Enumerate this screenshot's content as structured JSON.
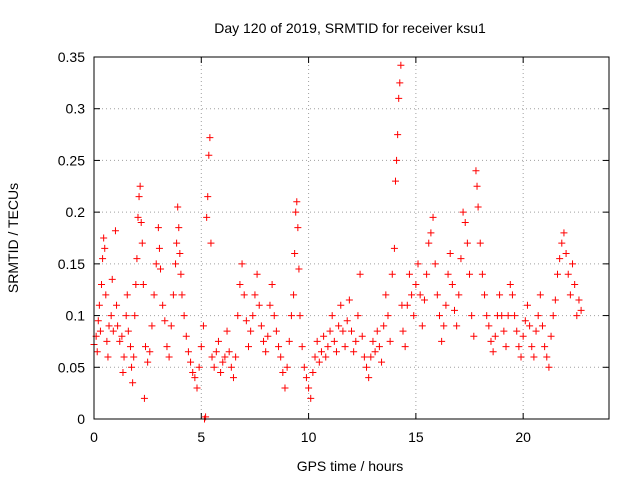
{
  "chart_data": {
    "type": "scatter",
    "title": "Day 120 of 2019, SRMTID for receiver ksu1",
    "xlabel": "GPS time / hours",
    "ylabel": "SRMTID / TECUs",
    "xlim": [
      0,
      24
    ],
    "ylim": [
      0,
      0.35
    ],
    "grid": true,
    "marker": "+",
    "x_ticks": [
      0,
      5,
      10,
      15,
      20
    ],
    "x_tick_labels": [
      "0",
      "5",
      "10",
      "15",
      "20"
    ],
    "y_ticks": [
      0,
      0.05,
      0.1,
      0.15,
      0.2,
      0.25,
      0.3,
      0.35
    ],
    "y_tick_labels": [
      "0",
      "0.05",
      "0.1",
      "0.15",
      "0.2",
      "0.25",
      "0.3",
      "0.35"
    ],
    "series": [
      {
        "name": "SRMTID",
        "color": "#ff0000",
        "points": [
          [
            0.0,
            0.072
          ],
          [
            0.1,
            0.08
          ],
          [
            0.15,
            0.065
          ],
          [
            0.2,
            0.095
          ],
          [
            0.25,
            0.11
          ],
          [
            0.3,
            0.085
          ],
          [
            0.35,
            0.13
          ],
          [
            0.4,
            0.155
          ],
          [
            0.45,
            0.175
          ],
          [
            0.5,
            0.165
          ],
          [
            0.55,
            0.12
          ],
          [
            0.6,
            0.075
          ],
          [
            0.65,
            0.06
          ],
          [
            0.7,
            0.09
          ],
          [
            0.8,
            0.1
          ],
          [
            0.85,
            0.135
          ],
          [
            0.9,
            0.085
          ],
          [
            1.0,
            0.182
          ],
          [
            1.05,
            0.11
          ],
          [
            1.1,
            0.09
          ],
          [
            1.2,
            0.075
          ],
          [
            1.3,
            0.08
          ],
          [
            1.35,
            0.045
          ],
          [
            1.4,
            0.06
          ],
          [
            1.5,
            0.1
          ],
          [
            1.55,
            0.12
          ],
          [
            1.6,
            0.085
          ],
          [
            1.7,
            0.07
          ],
          [
            1.75,
            0.05
          ],
          [
            1.8,
            0.035
          ],
          [
            1.85,
            0.06
          ],
          [
            1.9,
            0.1
          ],
          [
            1.95,
            0.13
          ],
          [
            2.0,
            0.155
          ],
          [
            2.05,
            0.195
          ],
          [
            2.1,
            0.215
          ],
          [
            2.15,
            0.225
          ],
          [
            2.2,
            0.19
          ],
          [
            2.25,
            0.17
          ],
          [
            2.3,
            0.13
          ],
          [
            2.35,
            0.02
          ],
          [
            2.4,
            0.07
          ],
          [
            2.5,
            0.055
          ],
          [
            2.6,
            0.065
          ],
          [
            2.7,
            0.09
          ],
          [
            2.8,
            0.12
          ],
          [
            2.9,
            0.15
          ],
          [
            3.0,
            0.185
          ],
          [
            3.05,
            0.165
          ],
          [
            3.1,
            0.145
          ],
          [
            3.2,
            0.11
          ],
          [
            3.3,
            0.095
          ],
          [
            3.4,
            0.07
          ],
          [
            3.5,
            0.06
          ],
          [
            3.6,
            0.09
          ],
          [
            3.7,
            0.12
          ],
          [
            3.8,
            0.15
          ],
          [
            3.85,
            0.17
          ],
          [
            3.9,
            0.205
          ],
          [
            3.95,
            0.185
          ],
          [
            4.0,
            0.16
          ],
          [
            4.05,
            0.14
          ],
          [
            4.1,
            0.12
          ],
          [
            4.2,
            0.1
          ],
          [
            4.3,
            0.08
          ],
          [
            4.4,
            0.065
          ],
          [
            4.5,
            0.055
          ],
          [
            4.6,
            0.045
          ],
          [
            4.7,
            0.04
          ],
          [
            4.8,
            0.03
          ],
          [
            4.9,
            0.05
          ],
          [
            5.0,
            0.07
          ],
          [
            5.1,
            0.09
          ],
          [
            5.15,
            0.0
          ],
          [
            5.2,
            0.002
          ],
          [
            5.25,
            0.195
          ],
          [
            5.3,
            0.215
          ],
          [
            5.35,
            0.255
          ],
          [
            5.4,
            0.272
          ],
          [
            5.45,
            0.17
          ],
          [
            5.5,
            0.06
          ],
          [
            5.6,
            0.05
          ],
          [
            5.7,
            0.065
          ],
          [
            5.8,
            0.075
          ],
          [
            5.9,
            0.045
          ],
          [
            6.0,
            0.055
          ],
          [
            6.1,
            0.06
          ],
          [
            6.2,
            0.085
          ],
          [
            6.3,
            0.065
          ],
          [
            6.4,
            0.05
          ],
          [
            6.5,
            0.04
          ],
          [
            6.6,
            0.06
          ],
          [
            6.7,
            0.1
          ],
          [
            6.8,
            0.13
          ],
          [
            6.9,
            0.15
          ],
          [
            7.0,
            0.12
          ],
          [
            7.1,
            0.095
          ],
          [
            7.2,
            0.07
          ],
          [
            7.3,
            0.085
          ],
          [
            7.4,
            0.1
          ],
          [
            7.5,
            0.12
          ],
          [
            7.6,
            0.14
          ],
          [
            7.7,
            0.11
          ],
          [
            7.8,
            0.09
          ],
          [
            7.9,
            0.075
          ],
          [
            8.0,
            0.065
          ],
          [
            8.1,
            0.08
          ],
          [
            8.2,
            0.11
          ],
          [
            8.3,
            0.13
          ],
          [
            8.4,
            0.1
          ],
          [
            8.5,
            0.085
          ],
          [
            8.6,
            0.07
          ],
          [
            8.7,
            0.06
          ],
          [
            8.8,
            0.045
          ],
          [
            8.9,
            0.03
          ],
          [
            9.0,
            0.05
          ],
          [
            9.1,
            0.075
          ],
          [
            9.2,
            0.1
          ],
          [
            9.3,
            0.12
          ],
          [
            9.35,
            0.16
          ],
          [
            9.4,
            0.2
          ],
          [
            9.45,
            0.21
          ],
          [
            9.5,
            0.185
          ],
          [
            9.55,
            0.145
          ],
          [
            9.6,
            0.1
          ],
          [
            9.7,
            0.07
          ],
          [
            9.8,
            0.05
          ],
          [
            9.9,
            0.04
          ],
          [
            10.0,
            0.03
          ],
          [
            10.1,
            0.02
          ],
          [
            10.2,
            0.045
          ],
          [
            10.3,
            0.06
          ],
          [
            10.4,
            0.075
          ],
          [
            10.5,
            0.055
          ],
          [
            10.6,
            0.065
          ],
          [
            10.7,
            0.08
          ],
          [
            10.8,
            0.06
          ],
          [
            10.9,
            0.07
          ],
          [
            11.0,
            0.085
          ],
          [
            11.1,
            0.1
          ],
          [
            11.2,
            0.075
          ],
          [
            11.3,
            0.065
          ],
          [
            11.4,
            0.09
          ],
          [
            11.5,
            0.11
          ],
          [
            11.6,
            0.085
          ],
          [
            11.7,
            0.07
          ],
          [
            11.8,
            0.095
          ],
          [
            11.9,
            0.115
          ],
          [
            12.0,
            0.085
          ],
          [
            12.1,
            0.065
          ],
          [
            12.2,
            0.075
          ],
          [
            12.3,
            0.1
          ],
          [
            12.4,
            0.14
          ],
          [
            12.5,
            0.08
          ],
          [
            12.6,
            0.06
          ],
          [
            12.7,
            0.05
          ],
          [
            12.8,
            0.04
          ],
          [
            12.9,
            0.06
          ],
          [
            13.0,
            0.075
          ],
          [
            13.1,
            0.065
          ],
          [
            13.2,
            0.085
          ],
          [
            13.3,
            0.07
          ],
          [
            13.4,
            0.055
          ],
          [
            13.5,
            0.09
          ],
          [
            13.6,
            0.12
          ],
          [
            13.7,
            0.1
          ],
          [
            13.8,
            0.075
          ],
          [
            13.9,
            0.14
          ],
          [
            14.0,
            0.165
          ],
          [
            14.05,
            0.23
          ],
          [
            14.1,
            0.25
          ],
          [
            14.15,
            0.275
          ],
          [
            14.2,
            0.31
          ],
          [
            14.25,
            0.325
          ],
          [
            14.3,
            0.342
          ],
          [
            14.35,
            0.11
          ],
          [
            14.4,
            0.085
          ],
          [
            14.5,
            0.07
          ],
          [
            14.6,
            0.11
          ],
          [
            14.7,
            0.14
          ],
          [
            14.8,
            0.12
          ],
          [
            14.9,
            0.1
          ],
          [
            15.0,
            0.13
          ],
          [
            15.1,
            0.15
          ],
          [
            15.2,
            0.12
          ],
          [
            15.3,
            0.09
          ],
          [
            15.4,
            0.115
          ],
          [
            15.5,
            0.14
          ],
          [
            15.6,
            0.17
          ],
          [
            15.7,
            0.18
          ],
          [
            15.8,
            0.195
          ],
          [
            15.9,
            0.15
          ],
          [
            16.0,
            0.12
          ],
          [
            16.1,
            0.1
          ],
          [
            16.2,
            0.075
          ],
          [
            16.3,
            0.09
          ],
          [
            16.4,
            0.11
          ],
          [
            16.5,
            0.14
          ],
          [
            16.6,
            0.16
          ],
          [
            16.7,
            0.13
          ],
          [
            16.8,
            0.105
          ],
          [
            16.9,
            0.09
          ],
          [
            17.0,
            0.12
          ],
          [
            17.1,
            0.155
          ],
          [
            17.2,
            0.2
          ],
          [
            17.3,
            0.19
          ],
          [
            17.4,
            0.17
          ],
          [
            17.5,
            0.14
          ],
          [
            17.6,
            0.1
          ],
          [
            17.7,
            0.08
          ],
          [
            17.8,
            0.24
          ],
          [
            17.85,
            0.225
          ],
          [
            17.9,
            0.205
          ],
          [
            18.0,
            0.17
          ],
          [
            18.1,
            0.14
          ],
          [
            18.2,
            0.12
          ],
          [
            18.3,
            0.1
          ],
          [
            18.4,
            0.09
          ],
          [
            18.5,
            0.075
          ],
          [
            18.6,
            0.065
          ],
          [
            18.7,
            0.08
          ],
          [
            18.8,
            0.1
          ],
          [
            18.9,
            0.12
          ],
          [
            19.0,
            0.1
          ],
          [
            19.1,
            0.085
          ],
          [
            19.2,
            0.07
          ],
          [
            19.3,
            0.1
          ],
          [
            19.4,
            0.13
          ],
          [
            19.5,
            0.12
          ],
          [
            19.6,
            0.1
          ],
          [
            19.7,
            0.085
          ],
          [
            19.8,
            0.07
          ],
          [
            19.9,
            0.06
          ],
          [
            20.0,
            0.08
          ],
          [
            20.1,
            0.095
          ],
          [
            20.2,
            0.11
          ],
          [
            20.3,
            0.09
          ],
          [
            20.4,
            0.07
          ],
          [
            20.5,
            0.06
          ],
          [
            20.6,
            0.085
          ],
          [
            20.7,
            0.1
          ],
          [
            20.8,
            0.12
          ],
          [
            20.9,
            0.09
          ],
          [
            21.0,
            0.07
          ],
          [
            21.1,
            0.06
          ],
          [
            21.2,
            0.05
          ],
          [
            21.3,
            0.08
          ],
          [
            21.4,
            0.1
          ],
          [
            21.5,
            0.115
          ],
          [
            21.6,
            0.14
          ],
          [
            21.7,
            0.155
          ],
          [
            21.8,
            0.17
          ],
          [
            21.9,
            0.18
          ],
          [
            22.0,
            0.16
          ],
          [
            22.1,
            0.14
          ],
          [
            22.2,
            0.12
          ],
          [
            22.3,
            0.15
          ],
          [
            22.4,
            0.13
          ],
          [
            22.5,
            0.1
          ],
          [
            22.6,
            0.115
          ],
          [
            22.7,
            0.105
          ]
        ]
      }
    ]
  }
}
